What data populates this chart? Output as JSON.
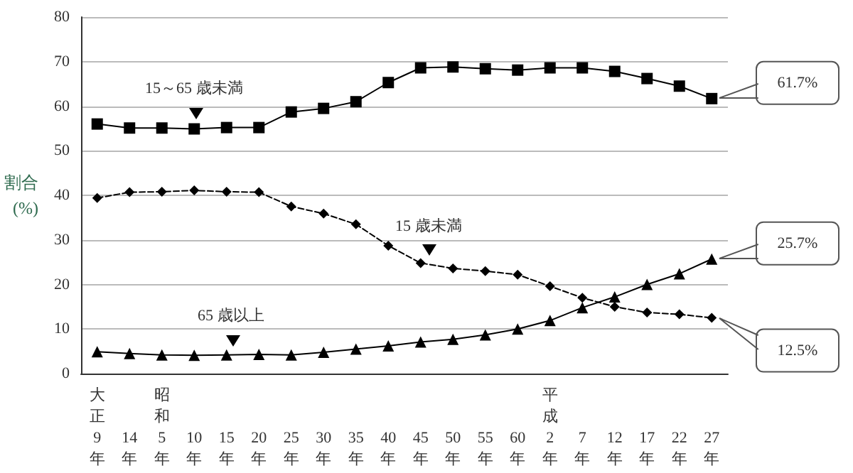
{
  "chart_data": {
    "type": "line",
    "ylabel": "割合\n(%)",
    "categories": [
      "大正9年",
      "14年",
      "昭和5年",
      "10年",
      "15年",
      "20年",
      "25年",
      "30年",
      "35年",
      "40年",
      "45年",
      "50年",
      "55年",
      "60年",
      "平成2年",
      "7年",
      "12年",
      "17年",
      "22年",
      "27年"
    ],
    "series": [
      {
        "color": "#000000",
        "marker": "square",
        "line_style": "solid",
        "values": [
          56.0,
          55.1,
          55.1,
          54.9,
          55.2,
          55.2,
          58.7,
          59.5,
          61.0,
          65.3,
          68.6,
          68.8,
          68.4,
          68.1,
          68.6,
          68.6,
          67.8,
          66.2,
          64.5,
          61.7
        ]
      },
      {
        "color": "#000000",
        "marker": "diamond",
        "line_style": "dashed",
        "values": [
          39.4,
          40.7,
          40.8,
          41.1,
          40.8,
          40.7,
          37.5,
          35.9,
          33.5,
          28.7,
          24.8,
          23.6,
          23.0,
          22.2,
          19.6,
          17.0,
          15.0,
          13.7,
          13.3,
          12.5
        ]
      },
      {
        "color": "#000000",
        "marker": "triangle",
        "line_style": "solid",
        "values": [
          4.9,
          4.5,
          4.2,
          4.1,
          4.2,
          4.3,
          4.2,
          4.8,
          5.5,
          6.2,
          7.1,
          7.7,
          8.7,
          10.0,
          11.9,
          14.8,
          17.2,
          20.0,
          22.4,
          25.7
        ]
      }
    ],
    "ylim": [
      0,
      80
    ],
    "yticks": [
      0,
      10,
      20,
      30,
      40,
      50,
      60,
      70,
      80
    ],
    "grid": "y",
    "annotations": [
      "15～65 歳未満",
      "15 歳未満",
      "65 歳以上",
      "61.7%",
      "25.7%",
      "12.5%"
    ]
  }
}
